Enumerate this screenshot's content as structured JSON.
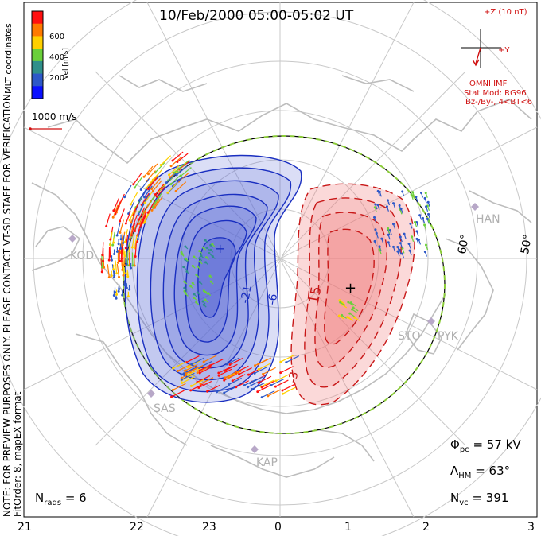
{
  "title": "10/Feb/2000 05:00-05:02 UT",
  "colorbar": {
    "ticks": [
      "600",
      "400",
      "200"
    ],
    "unit_label": "Vel [m/s]",
    "colors": [
      "#ff1010",
      "#ff7a00",
      "#ffd000",
      "#6ad03a",
      "#2f8f8a",
      "#2d58c8",
      "#0a10ff"
    ]
  },
  "coordinates_label": "MLT coordinates",
  "warning_text": "NOTE: FOR PREVIEW PURPOSES ONLY. PLEASE CONTACT VT-SD STAFF FOR VERIFICATION.",
  "fitorder_text": "FitOrder: 8, mapEX format",
  "scale_vector_label": "1000 m/s",
  "imf": {
    "z_label": "+Z (10 nT)",
    "y_label": "+Y",
    "source": "OMNI IMF",
    "model": "Stat Mod: RG96",
    "condition": "Bz-/By-, 4<BT<6"
  },
  "contour_labels": {
    "negative_a": "-21",
    "negative_b": "-6",
    "negative_c": "-3",
    "positive_a": "15"
  },
  "latitude_labels": [
    "60°",
    "50°"
  ],
  "stations": [
    "KOD",
    "HAN",
    "PYK",
    "STO",
    "SAS",
    "KAP"
  ],
  "stats": {
    "phi_symbol": "Φ",
    "phi_sub": "pc",
    "phi_value": "= 57 kV",
    "lambda_symbol": "Λ",
    "lambda_sub": "HM",
    "lambda_value": "= 63°",
    "n_symbol": "N",
    "nvc_sub": "vc",
    "nvc_value": "= 391",
    "nrads_sub": "rads",
    "nrads_value": "= 6"
  },
  "mlt_labels": [
    "21",
    "22",
    "23",
    "0",
    "1",
    "2",
    "3"
  ],
  "colors": {
    "negative_contour": "#1a2fc0",
    "positive_contour": "#c81818",
    "negative_fill": "#5a6bd8",
    "positive_fill": "#f07878",
    "coastline": "#bdbdbd",
    "grid": "#c8c8c8",
    "hmb_dash": "#8ccc3a"
  }
}
